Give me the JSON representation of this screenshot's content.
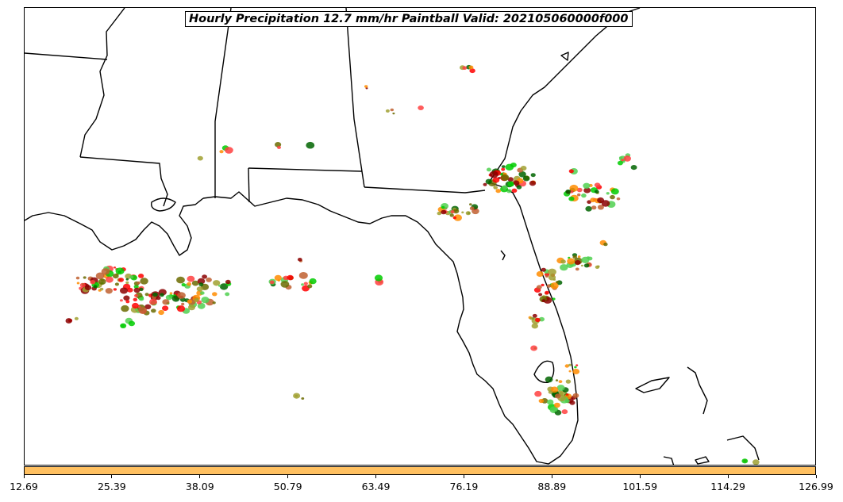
{
  "title": "Hourly Precipitation 12.7 mm/hr Paintball Valid: 202105060000f000",
  "colorbar": {
    "color": "#FFC060",
    "tick_labels": [
      "12.69",
      "25.39",
      "38.09",
      "50.79",
      "63.49",
      "76.19",
      "88.89",
      "101.59",
      "114.29",
      "126.99"
    ],
    "range": [
      12.69,
      126.99
    ]
  },
  "colors": {
    "coast": "#000000",
    "paint": [
      "#FF8C00",
      "#FF0000",
      "#00CC00",
      "#8B0000",
      "#6B6B00",
      "#A0A030",
      "#006400",
      "#FF4040",
      "#C06030",
      "#50D050"
    ]
  }
}
